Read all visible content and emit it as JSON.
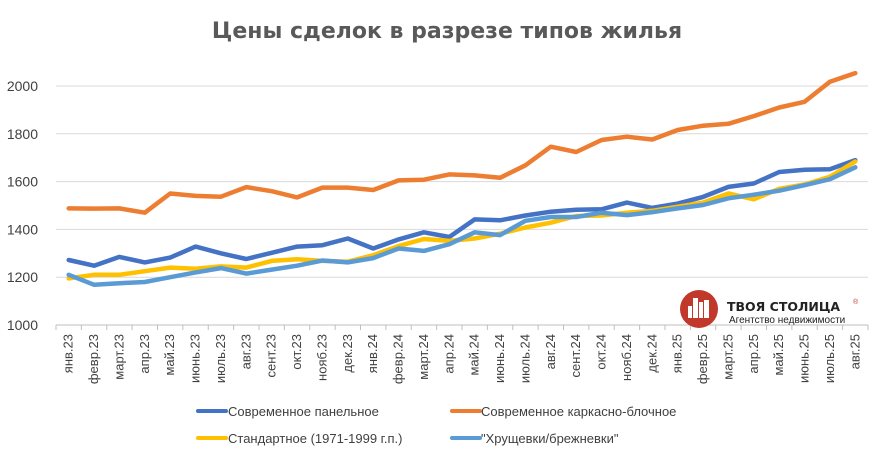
{
  "chart_data": {
    "type": "line",
    "title": "Цены сделок в разрезе типов жилья",
    "xlabel": "",
    "ylabel": "",
    "ylim": [
      1000,
      2100
    ],
    "yticks": [
      1000,
      1200,
      1400,
      1600,
      1800,
      2000
    ],
    "grid": true,
    "legend_position": "bottom",
    "categories": [
      "янв.23",
      "февр.23",
      "март.23",
      "апр.23",
      "май.23",
      "июнь.23",
      "июль.23",
      "авг.23",
      "сент.23",
      "окт.23",
      "нояб.23",
      "дек.23",
      "янв.24",
      "февр.24",
      "март.24",
      "апр.24",
      "май.24",
      "июнь.24",
      "июль.24",
      "авг.24",
      "сент.24",
      "окт.24",
      "нояб.24",
      "дек.24",
      "янв.25",
      "февр.25",
      "март.25",
      "апр.25",
      "май.25",
      "июнь.25",
      "июль.25",
      "авг.25"
    ],
    "series": [
      {
        "name": "Современное панельное",
        "color": "#4472C4",
        "values": [
          1272,
          1248,
          1285,
          1262,
          1282,
          1328,
          1300,
          1276,
          1302,
          1328,
          1334,
          1362,
          1320,
          1358,
          1388,
          1368,
          1442,
          1438,
          1458,
          1474,
          1482,
          1484,
          1512,
          1490,
          1508,
          1536,
          1578,
          1592,
          1640,
          1650,
          1652,
          1690
        ]
      },
      {
        "name": "Современное каркасно-блочное",
        "color": "#ED7D31",
        "values": [
          1488,
          1487,
          1488,
          1470,
          1550,
          1540,
          1537,
          1577,
          1560,
          1534,
          1575,
          1575,
          1565,
          1605,
          1608,
          1630,
          1626,
          1616,
          1668,
          1746,
          1724,
          1774,
          1788,
          1776,
          1816,
          1834,
          1842,
          1874,
          1910,
          1934,
          2018,
          2054
        ]
      },
      {
        "name": "Стандартное (1971-1999 г.п.)",
        "color": "#FFC000",
        "values": [
          1195,
          1210,
          1210,
          1225,
          1240,
          1235,
          1245,
          1240,
          1268,
          1275,
          1268,
          1265,
          1292,
          1330,
          1360,
          1352,
          1362,
          1382,
          1408,
          1428,
          1456,
          1458,
          1470,
          1478,
          1495,
          1512,
          1550,
          1526,
          1570,
          1588,
          1620,
          1684
        ]
      },
      {
        "name": "\"Хрущевки/брежневки\"",
        "color": "#5B9BD5",
        "values": [
          1210,
          1168,
          1175,
          1180,
          1200,
          1220,
          1238,
          1215,
          1232,
          1248,
          1270,
          1262,
          1280,
          1320,
          1310,
          1338,
          1388,
          1376,
          1436,
          1452,
          1452,
          1470,
          1460,
          1472,
          1488,
          1502,
          1530,
          1545,
          1562,
          1585,
          1610,
          1660
        ]
      }
    ]
  },
  "logo": {
    "name": "ТВОЯ СТОЛИЦА",
    "registered": "®",
    "tagline": "Агентство недвижимости",
    "color": "#C0392B"
  }
}
